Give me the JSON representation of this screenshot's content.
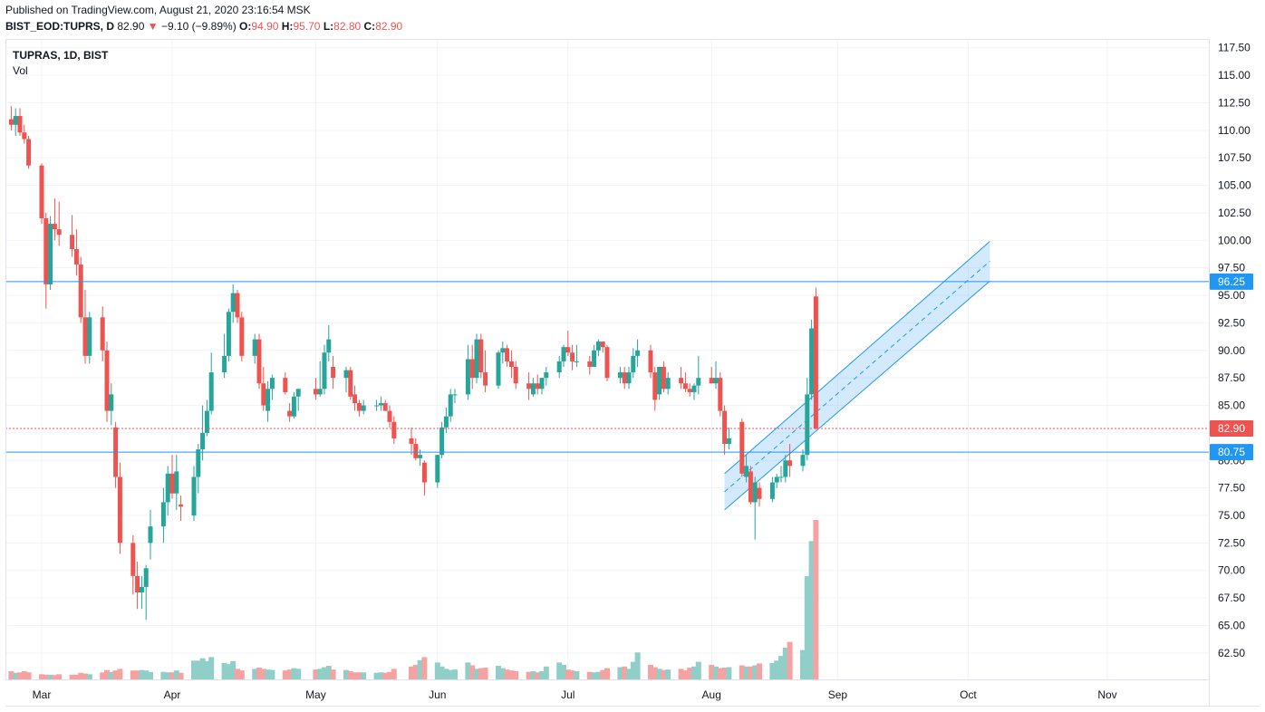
{
  "header": {
    "published": "Published on TradingView.com, August 21, 2020 23:16:54 MSK",
    "symbol": "BIST_EOD:TUPRS, D",
    "last": "82.90",
    "change": "−9.10 (−9.89%)",
    "open_label": "O:",
    "open": "94.90",
    "high_label": "H:",
    "high": "95.70",
    "low_label": "L:",
    "low": "82.80",
    "close_label": "C:",
    "close": "82.90"
  },
  "legend": {
    "title": "TUPRAS, 1D, BIST",
    "volume": "Vol"
  },
  "chart_data": {
    "type": "candlestick",
    "yaxis": {
      "min": 60.1,
      "max": 118.3,
      "ticks": [
        62.5,
        65,
        67.5,
        70,
        72.5,
        75,
        77.5,
        80,
        82.5,
        85,
        87.5,
        90,
        92.5,
        95,
        97.5,
        100,
        102.5,
        105,
        107.5,
        110,
        112.5,
        115,
        117.5
      ]
    },
    "xaxis": {
      "labels": [
        {
          "text": "Mar",
          "date": "2020-03-02"
        },
        {
          "text": "Apr",
          "date": "2020-04-01"
        },
        {
          "text": "May",
          "date": "2020-05-04"
        },
        {
          "text": "Jun",
          "date": "2020-06-01"
        },
        {
          "text": "Jul",
          "date": "2020-07-01"
        },
        {
          "text": "Aug",
          "date": "2020-08-03"
        },
        {
          "text": "Sep",
          "date": "2020-09-01"
        },
        {
          "text": "Oct",
          "date": "2020-10-01"
        },
        {
          "text": "Nov",
          "date": "2020-11-02"
        }
      ]
    },
    "price_lines": [
      {
        "value": 96.25,
        "label": "96.25",
        "color": "#2196f3",
        "style": "solid"
      },
      {
        "value": 80.75,
        "label": "80.75",
        "color": "#2196f3",
        "style": "solid"
      },
      {
        "value": 82.9,
        "label": "82.90",
        "color": "#ef5350",
        "style": "dotted"
      }
    ],
    "channel": {
      "lower": [
        {
          "date": "2020-08-06",
          "value": 75.5
        },
        {
          "date": "2020-10-06",
          "value": 96.3
        }
      ],
      "upper": [
        {
          "date": "2020-08-06",
          "value": 78.8
        },
        {
          "date": "2020-10-06",
          "value": 99.9
        }
      ],
      "color": "#2196f3"
    },
    "colors": {
      "up": "#26a69a",
      "down": "#ef5350",
      "vol_up": "#8fcfc8",
      "vol_down": "#f5a3a2"
    },
    "candles": [
      [
        "2020-02-24",
        111,
        112.2,
        110,
        110.5,
        0.35
      ],
      [
        "2020-02-25",
        110.5,
        112,
        109.5,
        111.3,
        0.28
      ],
      [
        "2020-02-26",
        111.3,
        112,
        109.5,
        109.8,
        0.3
      ],
      [
        "2020-02-27",
        109.8,
        110.5,
        108.8,
        109.2,
        0.35
      ],
      [
        "2020-02-28",
        109.2,
        109.5,
        106.5,
        106.8,
        0.3
      ],
      [
        "2020-03-02",
        106.8,
        107,
        101.5,
        102,
        0.22
      ],
      [
        "2020-03-03",
        102,
        102.5,
        93.8,
        96,
        0.2
      ],
      [
        "2020-03-04",
        96,
        102.2,
        95.5,
        101.5,
        0.2
      ],
      [
        "2020-03-05",
        101.5,
        103.8,
        100,
        101,
        0.18
      ],
      [
        "2020-03-06",
        101,
        103.5,
        99.5,
        100.5,
        0.22
      ],
      [
        "2020-03-09",
        100.5,
        102.3,
        98.5,
        99.2,
        0.2
      ],
      [
        "2020-03-10",
        99.2,
        101,
        96.8,
        97.8,
        0.2
      ],
      [
        "2020-03-11",
        97.8,
        98.5,
        92.5,
        93,
        0.28
      ],
      [
        "2020-03-12",
        93,
        95.5,
        88.8,
        89.5,
        0.25
      ],
      [
        "2020-03-13",
        89.5,
        93.5,
        88.8,
        93,
        0.22
      ],
      [
        "2020-03-16",
        93,
        94,
        89,
        90,
        0.3
      ],
      [
        "2020-03-17",
        90,
        90.8,
        83.5,
        84.5,
        0.4
      ],
      [
        "2020-03-18",
        84.5,
        87,
        83.2,
        86,
        0.32
      ],
      [
        "2020-03-19",
        83,
        83.5,
        77.5,
        78.5,
        0.38
      ],
      [
        "2020-03-20",
        78.5,
        79.8,
        71.5,
        72.5,
        0.45
      ],
      [
        "2020-03-23",
        72.5,
        73.2,
        67.8,
        69.5,
        0.38
      ],
      [
        "2020-03-24",
        69.5,
        70.8,
        66.5,
        68,
        0.38
      ],
      [
        "2020-03-25",
        68,
        69.5,
        66.5,
        68.5,
        0.4
      ],
      [
        "2020-03-26",
        68.5,
        70.5,
        65.5,
        70.2,
        0.38
      ],
      [
        "2020-03-27",
        72.5,
        75.5,
        71,
        74,
        0.32
      ],
      [
        "2020-03-30",
        74,
        77.5,
        72.5,
        76.2,
        0.32
      ],
      [
        "2020-03-31",
        76.2,
        79.5,
        75,
        78.8,
        0.3
      ],
      [
        "2020-04-01",
        78.8,
        80.5,
        76.5,
        77,
        0.3
      ],
      [
        "2020-04-02",
        77,
        80.5,
        75.5,
        79,
        0.38
      ],
      [
        "2020-04-03",
        76,
        76.8,
        74.5,
        75.8,
        0.28
      ],
      [
        "2020-04-06",
        75,
        79.5,
        74.5,
        78.5,
        0.8
      ],
      [
        "2020-04-07",
        78.5,
        81.5,
        77,
        81,
        0.8
      ],
      [
        "2020-04-08",
        81,
        85,
        80,
        82.5,
        0.9
      ],
      [
        "2020-04-09",
        82.5,
        85.5,
        82.2,
        84.5,
        0.78
      ],
      [
        "2020-04-10",
        84.5,
        89.8,
        84.2,
        88,
        0.95
      ],
      [
        "2020-04-13",
        88,
        91.5,
        87.5,
        89.5,
        0.7
      ],
      [
        "2020-04-14",
        89.5,
        93.8,
        89,
        93.5,
        0.65
      ],
      [
        "2020-04-15",
        93.5,
        96,
        92.5,
        95.2,
        0.78
      ],
      [
        "2020-04-16",
        95.2,
        95.5,
        92.5,
        93,
        0.45
      ],
      [
        "2020-04-17",
        93,
        93.5,
        89,
        89.5,
        0.38
      ],
      [
        "2020-04-20",
        89.5,
        91.5,
        88.8,
        91,
        0.45
      ],
      [
        "2020-04-21",
        91,
        91.5,
        86.5,
        87,
        0.5
      ],
      [
        "2020-04-22",
        87,
        88.5,
        84.5,
        85,
        0.45
      ],
      [
        "2020-04-23",
        84.5,
        87.2,
        83.5,
        86.5,
        0.42
      ],
      [
        "2020-04-24",
        86.5,
        87.8,
        85.5,
        87.5,
        0.4
      ],
      [
        "2020-04-27",
        87.5,
        88,
        86,
        86.2,
        0.38
      ],
      [
        "2020-04-28",
        84.5,
        85.2,
        83.5,
        84,
        0.42
      ],
      [
        "2020-04-29",
        84,
        86.2,
        83.8,
        85.8,
        0.48
      ],
      [
        "2020-04-30",
        85.8,
        86.5,
        84.5,
        86.5,
        0.45
      ],
      [
        "2020-05-04",
        86.5,
        87.5,
        85.5,
        86,
        0.42
      ],
      [
        "2020-05-05",
        86,
        89,
        85.8,
        86.5,
        0.45
      ],
      [
        "2020-05-06",
        86.5,
        90.5,
        86,
        89.8,
        0.52
      ],
      [
        "2020-05-07",
        89.8,
        92.3,
        89,
        91,
        0.58
      ],
      [
        "2020-05-08",
        88.5,
        89.5,
        86.5,
        87.5,
        0.42
      ],
      [
        "2020-05-11",
        87.5,
        88.5,
        86.2,
        88.2,
        0.4
      ],
      [
        "2020-05-12",
        88.2,
        88.5,
        85.5,
        85.8,
        0.35
      ],
      [
        "2020-05-13",
        86,
        86.8,
        84.5,
        85.2,
        0.3
      ],
      [
        "2020-05-14",
        85.2,
        85.5,
        84,
        84.5,
        0.3
      ],
      [
        "2020-05-15",
        84.5,
        85.5,
        84.2,
        85,
        0.3
      ],
      [
        "2020-05-18",
        85,
        85.5,
        84.5,
        85,
        0.28
      ],
      [
        "2020-05-19",
        85,
        85.8,
        84.5,
        85.2,
        0.3
      ],
      [
        "2020-05-20",
        85.2,
        85.5,
        84.5,
        84.5,
        0.28
      ],
      [
        "2020-05-21",
        84.5,
        85,
        83,
        83.5,
        0.32
      ],
      [
        "2020-05-22",
        83.5,
        84,
        81.5,
        82,
        0.45
      ],
      [
        "2020-05-26",
        82,
        83,
        80.5,
        81.5,
        0.55
      ],
      [
        "2020-05-27",
        81.5,
        82,
        80,
        80.2,
        0.62
      ],
      [
        "2020-05-28",
        80.2,
        81,
        79.5,
        80.5,
        0.82
      ],
      [
        "2020-05-29",
        79.8,
        80,
        76.8,
        78,
        0.95
      ],
      [
        "2020-06-01",
        78,
        80.5,
        77.5,
        80.5,
        0.72
      ],
      [
        "2020-06-02",
        80.5,
        83.5,
        80.2,
        83,
        0.55
      ],
      [
        "2020-06-03",
        83,
        84.8,
        82.5,
        84,
        0.45
      ],
      [
        "2020-06-04",
        84,
        86.5,
        83.5,
        86,
        0.4
      ],
      [
        "2020-06-05",
        86,
        86.5,
        85.2,
        86,
        0.42
      ],
      [
        "2020-06-08",
        86,
        90.5,
        85.5,
        89.2,
        0.72
      ],
      [
        "2020-06-09",
        89.2,
        90.5,
        86.5,
        87.5,
        0.6
      ],
      [
        "2020-06-10",
        87.5,
        91.5,
        87,
        91,
        0.45
      ],
      [
        "2020-06-11",
        91,
        91.5,
        87.5,
        88,
        0.48
      ],
      [
        "2020-06-12",
        88,
        90,
        86.2,
        86.8,
        0.5
      ],
      [
        "2020-06-15",
        86.8,
        90,
        86.5,
        89.8,
        0.58
      ],
      [
        "2020-06-16",
        89.8,
        90.8,
        88.8,
        90.2,
        0.48
      ],
      [
        "2020-06-17",
        90.2,
        90.5,
        88.5,
        89,
        0.42
      ],
      [
        "2020-06-18",
        89,
        90,
        87.5,
        88.5,
        0.38
      ],
      [
        "2020-06-19",
        88.5,
        89,
        86.5,
        87,
        0.35
      ],
      [
        "2020-06-22",
        87,
        88,
        85.5,
        86.5,
        0.32
      ],
      [
        "2020-06-23",
        86,
        87.5,
        85.8,
        87,
        0.35
      ],
      [
        "2020-06-24",
        87,
        87.8,
        86,
        86.5,
        0.3
      ],
      [
        "2020-06-25",
        86.5,
        87.5,
        86,
        87.5,
        0.35
      ],
      [
        "2020-06-26",
        87.5,
        88.5,
        86.8,
        88,
        0.55
      ],
      [
        "2020-06-29",
        88,
        89.5,
        87.5,
        89,
        0.72
      ],
      [
        "2020-06-30",
        89,
        90.5,
        88.5,
        90.3,
        0.62
      ],
      [
        "2020-07-01",
        90.3,
        91.8,
        89.5,
        89.8,
        0.42
      ],
      [
        "2020-07-02",
        89.8,
        90.5,
        88.2,
        89,
        0.38
      ],
      [
        "2020-07-03",
        89,
        90.5,
        88.5,
        89,
        0.35
      ],
      [
        "2020-07-06",
        89,
        89.5,
        87.8,
        88.5,
        0.32
      ],
      [
        "2020-07-07",
        88.5,
        90.5,
        88.5,
        90,
        0.3
      ],
      [
        "2020-07-08",
        90,
        91,
        89.5,
        90.8,
        0.32
      ],
      [
        "2020-07-09",
        90.8,
        90.8,
        89.8,
        90.3,
        0.4
      ],
      [
        "2020-07-10",
        90.3,
        90.5,
        87.2,
        87.5,
        0.48
      ],
      [
        "2020-07-13",
        87.5,
        88.5,
        87,
        88,
        0.52
      ],
      [
        "2020-07-14",
        88,
        88.5,
        86.5,
        87,
        0.55
      ],
      [
        "2020-07-15",
        87,
        88.5,
        86.5,
        88,
        0.45
      ],
      [
        "2020-07-16",
        88,
        90.2,
        87.5,
        89.5,
        0.75
      ],
      [
        "2020-07-17",
        89.5,
        91,
        88.5,
        90,
        1.15
      ],
      [
        "2020-07-20",
        90,
        90.5,
        87.5,
        88,
        0.62
      ],
      [
        "2020-07-21",
        88,
        88.5,
        84.5,
        85.5,
        0.52
      ],
      [
        "2020-07-22",
        86,
        88.5,
        85.5,
        88.5,
        0.45
      ],
      [
        "2020-07-23",
        88.5,
        89,
        86.2,
        86.5,
        0.4
      ],
      [
        "2020-07-24",
        86.5,
        88,
        86,
        87.5,
        0.42
      ],
      [
        "2020-07-27",
        87.5,
        88.5,
        86.5,
        87,
        0.45
      ],
      [
        "2020-07-28",
        87,
        88,
        86.2,
        86.5,
        0.38
      ],
      [
        "2020-07-29",
        86.5,
        87,
        85.8,
        86.2,
        0.5
      ],
      [
        "2020-07-30",
        86.2,
        87,
        85.5,
        86.8,
        0.55
      ],
      [
        "2020-07-31",
        86.8,
        89.5,
        86,
        87.5,
        0.75
      ],
      [
        "2020-08-03",
        87.5,
        88.5,
        87,
        87,
        0.62
      ],
      [
        "2020-08-04",
        87,
        89,
        86.5,
        87.5,
        0.55
      ],
      [
        "2020-08-05",
        87.5,
        88,
        84,
        84.5,
        0.48
      ],
      [
        "2020-08-06",
        84.5,
        85,
        80.5,
        81.5,
        0.5
      ],
      [
        "2020-08-07",
        81.5,
        83,
        81,
        82,
        0.52
      ],
      [
        "2020-08-10",
        83.5,
        83.8,
        78.5,
        78.8,
        0.6
      ],
      [
        "2020-08-11",
        78.5,
        80.5,
        78,
        79.5,
        0.55
      ],
      [
        "2020-08-12",
        79,
        79.5,
        76,
        76.2,
        0.55
      ],
      [
        "2020-08-13",
        76.2,
        78.5,
        72.8,
        78,
        0.6
      ],
      [
        "2020-08-14",
        77.5,
        78,
        75.8,
        76.5,
        0.68
      ],
      [
        "2020-08-17",
        76.5,
        78.5,
        76.2,
        78,
        0.7
      ],
      [
        "2020-08-18",
        78,
        78.8,
        77.5,
        78.5,
        0.8
      ],
      [
        "2020-08-19",
        78.5,
        79.5,
        78,
        78.5,
        1.0
      ],
      [
        "2020-08-20",
        78.5,
        80.5,
        78,
        80,
        1.35
      ],
      [
        "2020-08-21",
        80,
        81.5,
        78.5,
        79.5,
        1.6
      ],
      [
        "2020-08-24",
        79.5,
        81,
        79,
        80.5,
        1.25
      ],
      [
        "2020-08-25",
        80.5,
        87.5,
        80,
        86,
        4.4
      ],
      [
        "2020-08-26",
        86,
        92.8,
        85.5,
        92,
        5.9
      ],
      [
        "2020-08-27",
        94.9,
        95.7,
        82.8,
        82.9,
        6.8
      ]
    ]
  }
}
